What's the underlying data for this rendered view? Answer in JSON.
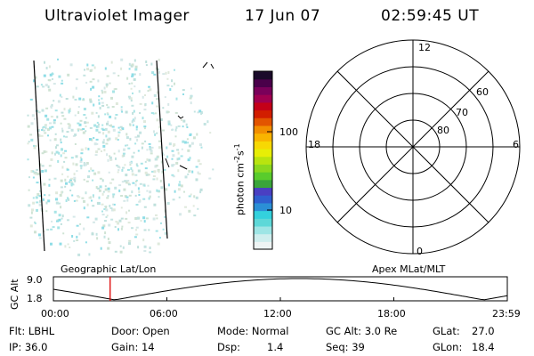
{
  "header": {
    "instrument": "Ultraviolet Imager",
    "date": "17 Jun 07",
    "time": "02:59:45 UT"
  },
  "colorbar": {
    "ylabel": "photon cm",
    "ylabel_sup1": "-2",
    "ylabel_mid": "s",
    "ylabel_sup2": "-1",
    "ticks": [
      "100",
      "10"
    ],
    "colors": [
      "#eef4f4",
      "#cfeeee",
      "#9ee5e5",
      "#5ed8d8",
      "#33d1dd",
      "#2b8fd6",
      "#2f5fcf",
      "#4a3fc2",
      "#3aa53a",
      "#59cc2c",
      "#8ad81e",
      "#b9e40f",
      "#e7ee06",
      "#f7d803",
      "#f9b400",
      "#f28e00",
      "#e25400",
      "#d21e00",
      "#c40018",
      "#a00050",
      "#7a005a",
      "#4a004a",
      "#1a0a2a"
    ]
  },
  "polar_plot": {
    "top_label": "12",
    "bottom_label": "0",
    "left_label": "18",
    "right_label": "6",
    "ring_labels": [
      "60",
      "70",
      "80"
    ]
  },
  "altitude_strip": {
    "left_label": "Geographic Lat/Lon",
    "right_label": "Apex MLat/MLT",
    "axis_label": "GC Alt",
    "ytick_top": "9.0",
    "ytick_bottom": "1.8",
    "xticks": [
      "00:00",
      "06:00",
      "12:00",
      "18:00",
      "23:59"
    ],
    "current_time_hours": 3.0,
    "marker_color": "#dd0000"
  },
  "footer": {
    "filter": "Flt: LBHL",
    "ip": "IP: 36.0",
    "door": "Door: Open",
    "gain": "Gain: 14",
    "mode": "Mode: Normal",
    "dsp_label": "Dsp:",
    "dsp_value": "1.4",
    "gc_alt": "GC Alt: 3.0 Re",
    "seq": "Seq: 39",
    "glat_label": "GLat:",
    "glat_value": "27.0",
    "glon_label": "GLon:",
    "glon_value": "18.4"
  }
}
